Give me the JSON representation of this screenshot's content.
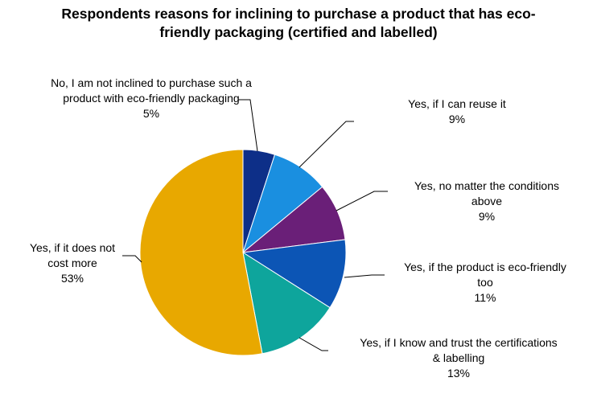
{
  "title_lines": [
    "Respondents reasons for inclining to purchase a product that has eco-",
    "friendly packaging (certified and labelled)"
  ],
  "colors": {
    "navy": "#0d2f88",
    "sky_blue": "#1a8fe0",
    "purple": "#6a1f78",
    "royal_blue": "#0c55b5",
    "teal": "#0ea59c",
    "gold": "#e8a800",
    "leader_line": "#000000",
    "slice_border": "#ffffff"
  },
  "chart_data": {
    "type": "pie",
    "start_angle_deg": 0,
    "direction": "clockwise",
    "slices": [
      {
        "label_lines": [
          "No, I am not inclined to purchase such a",
          "product with eco-friendly packaging"
        ],
        "value": 5,
        "percent_label": "5%",
        "color": "#0d2f88"
      },
      {
        "label_lines": [
          "Yes, if I can reuse it"
        ],
        "value": 9,
        "percent_label": "9%",
        "color": "#1a8fe0"
      },
      {
        "label_lines": [
          "Yes, no matter the conditions",
          "above"
        ],
        "value": 9,
        "percent_label": "9%",
        "color": "#6a1f78"
      },
      {
        "label_lines": [
          "Yes, if the product is eco-friendly",
          "too"
        ],
        "value": 11,
        "percent_label": "11%",
        "color": "#0c55b5"
      },
      {
        "label_lines": [
          "Yes, if I know and trust the certifications",
          "& labelling"
        ],
        "value": 13,
        "percent_label": "13%",
        "color": "#0ea59c"
      },
      {
        "label_lines": [
          "Yes, if it does not",
          "cost more"
        ],
        "value": 53,
        "percent_label": "53%",
        "color": "#e8a800"
      }
    ]
  }
}
